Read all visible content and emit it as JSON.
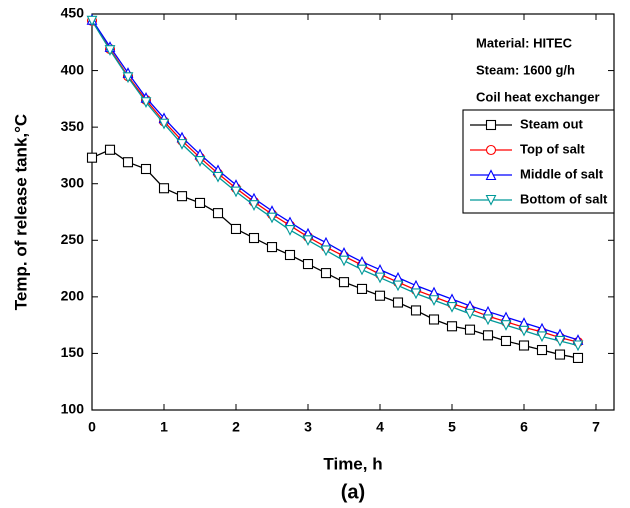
{
  "chart_data": {
    "type": "line",
    "xlabel": "Time, h",
    "ylabel": "Temp. of release tank,°C",
    "caption": "(a)",
    "annotations": [
      "Material: HITEC",
      "Steam: 1600 g/h",
      "Coil heat exchanger"
    ],
    "x": [
      0,
      0.25,
      0.5,
      0.75,
      1,
      1.25,
      1.5,
      1.75,
      2,
      2.25,
      2.5,
      2.75,
      3,
      3.25,
      3.5,
      3.75,
      4,
      4.25,
      4.5,
      4.75,
      5,
      5.25,
      5.5,
      5.75,
      6,
      6.25,
      6.5,
      6.75
    ],
    "series": [
      {
        "name": "Steam out",
        "color": "#000000",
        "marker": "square",
        "values": [
          323,
          330,
          319,
          313,
          296,
          289,
          283,
          274,
          260,
          252,
          244,
          237,
          229,
          221,
          213,
          207,
          201,
          195,
          188,
          180,
          174,
          171,
          166,
          161,
          157,
          153,
          149,
          146
        ]
      },
      {
        "name": "Top of salt",
        "color": "#ff0000",
        "marker": "circle",
        "values": [
          444,
          419,
          395,
          374,
          355,
          338,
          323,
          309,
          296,
          284,
          273,
          263,
          253,
          244,
          236,
          228,
          220,
          213,
          206,
          200,
          194,
          189,
          183,
          178,
          173,
          169,
          164,
          160
        ]
      },
      {
        "name": "Middle of salt",
        "color": "#0000ff",
        "marker": "triangle-up",
        "values": [
          445,
          421,
          398,
          376,
          358,
          341,
          326,
          312,
          299,
          287,
          276,
          266,
          256,
          248,
          239,
          231,
          224,
          217,
          210,
          204,
          198,
          192,
          187,
          182,
          177,
          172,
          167,
          162
        ]
      },
      {
        "name": "Bottom of salt",
        "color": "#009999",
        "marker": "triangle-down",
        "values": [
          444,
          418,
          394,
          372,
          353,
          335,
          320,
          306,
          293,
          281,
          270,
          259,
          250,
          241,
          232,
          224,
          217,
          210,
          203,
          197,
          191,
          185,
          180,
          175,
          170,
          165,
          161,
          157
        ]
      }
    ],
    "xlim": [
      0,
      7.25
    ],
    "xticks": [
      0,
      1,
      2,
      3,
      4,
      5,
      6,
      7
    ],
    "ylim": [
      100,
      450
    ],
    "yticks": [
      100,
      150,
      200,
      250,
      300,
      350,
      400,
      450
    ],
    "legend": "upper-right",
    "grid": false
  }
}
